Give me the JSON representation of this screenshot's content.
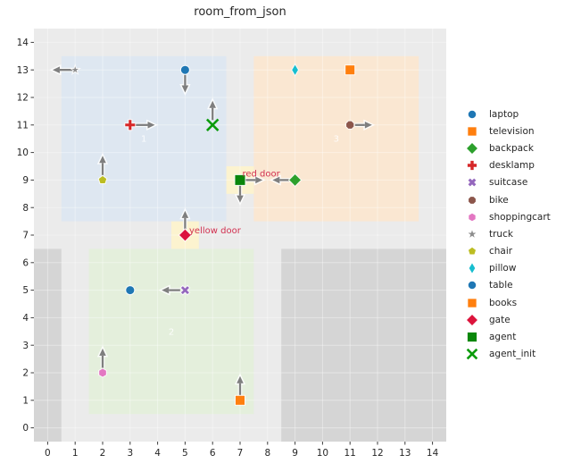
{
  "chart_data": {
    "type": "scatter",
    "title": "room_from_json",
    "xlabel": "",
    "ylabel": "",
    "xlim": [
      -0.5,
      14.5
    ],
    "ylim": [
      -0.5,
      14.5
    ],
    "xticks": [
      0,
      1,
      2,
      3,
      4,
      5,
      6,
      7,
      8,
      9,
      10,
      11,
      12,
      13,
      14
    ],
    "yticks": [
      0,
      1,
      2,
      3,
      4,
      5,
      6,
      7,
      8,
      9,
      10,
      11,
      12,
      13,
      14
    ],
    "grid": true,
    "legend_position": "right-outside",
    "plot_bg": "#ebebeb",
    "grid_color": "rgba(255,255,255,0.38)",
    "tick_color": "#3c3c3c",
    "tick_label_color": "#262626",
    "arrow_color": "#7f7f7f",
    "annotation_color": "#d23050",
    "region_label_color": "rgba(255,255,255,0.88)",
    "regions": [
      {
        "name": "room-1",
        "x0": 0.5,
        "x1": 6.5,
        "y0": 7.5,
        "y1": 13.5,
        "color": "#dee7f1"
      },
      {
        "name": "room-3",
        "x0": 7.5,
        "x1": 13.5,
        "y0": 7.5,
        "y1": 13.5,
        "color": "#fae7d2"
      },
      {
        "name": "room-2",
        "x0": 1.5,
        "x1": 7.5,
        "y0": 0.5,
        "y1": 6.5,
        "color": "#e4efdc"
      },
      {
        "name": "obstacle-left",
        "x0": -0.5,
        "x1": 0.5,
        "y0": -0.5,
        "y1": 6.5,
        "color": "#d5d5d5"
      },
      {
        "name": "obstacle-right",
        "x0": 8.5,
        "x1": 14.5,
        "y0": -0.5,
        "y1": 6.5,
        "color": "#d5d5d5"
      },
      {
        "name": "yellow-door-area",
        "x0": 4.5,
        "x1": 5.5,
        "y0": 6.5,
        "y1": 7.5,
        "color": "#fcf3cf"
      },
      {
        "name": "red-door-area",
        "x0": 6.5,
        "x1": 7.5,
        "y0": 8.5,
        "y1": 9.5,
        "color": "#fcf3cf"
      }
    ],
    "region_labels": [
      {
        "text": "1",
        "x": 3.5,
        "y": 10.5
      },
      {
        "text": "2",
        "x": 4.5,
        "y": 3.5
      },
      {
        "text": "3",
        "x": 10.5,
        "y": 10.5
      }
    ],
    "annotations": [
      {
        "text": "red door",
        "x": 7.08,
        "y": 9.13
      },
      {
        "text": "yellow door",
        "x": 5.15,
        "y": 7.06
      }
    ],
    "points": [
      {
        "name": "laptop",
        "marker": "circle",
        "color": "#1f77b4",
        "x": 5,
        "y": 13,
        "size": 10
      },
      {
        "name": "television",
        "marker": "square",
        "color": "#ff7f0e",
        "x": 11,
        "y": 13,
        "size": 11
      },
      {
        "name": "backpack",
        "marker": "diamond",
        "color": "#2ca02c",
        "x": 9,
        "y": 9,
        "size": 13
      },
      {
        "name": "desklamp",
        "marker": "plus",
        "color": "#d62728",
        "x": 3,
        "y": 11,
        "size": 12
      },
      {
        "name": "suitcase",
        "marker": "x-thick",
        "color": "#9467bd",
        "x": 5,
        "y": 5,
        "size": 11
      },
      {
        "name": "bike",
        "marker": "octagon",
        "color": "#8c564b",
        "x": 11,
        "y": 11,
        "size": 10
      },
      {
        "name": "shoppingcart",
        "marker": "hexagon",
        "color": "#e377c2",
        "x": 2,
        "y": 2,
        "size": 10
      },
      {
        "name": "truck",
        "marker": "star",
        "color": "#8c8c8c",
        "x": 1,
        "y": 13,
        "size": 11
      },
      {
        "name": "chair",
        "marker": "pentagon",
        "color": "#bcbd22",
        "x": 2,
        "y": 9,
        "size": 10
      },
      {
        "name": "pillow",
        "marker": "thin-diamond",
        "color": "#17becf",
        "x": 9,
        "y": 13,
        "size": 13
      },
      {
        "name": "table",
        "marker": "circle",
        "color": "#1f77b4",
        "x": 3,
        "y": 5,
        "size": 10
      },
      {
        "name": "books",
        "marker": "square",
        "color": "#ff7f0e",
        "x": 7,
        "y": 1,
        "size": 11
      },
      {
        "name": "gate",
        "marker": "diamond",
        "color": "#dc143c",
        "x": 5,
        "y": 7,
        "size": 13
      },
      {
        "name": "agent",
        "marker": "square",
        "color": "#0a870a",
        "x": 7,
        "y": 9,
        "size": 12
      },
      {
        "name": "agent_init",
        "marker": "x-line",
        "color": "#0b9b0b",
        "x": 6,
        "y": 11,
        "size": 15
      }
    ],
    "arrows": [
      {
        "owner": "truck",
        "from": [
          0.95,
          13
        ],
        "to": [
          0.18,
          13
        ]
      },
      {
        "owner": "laptop",
        "from": [
          5,
          12.82
        ],
        "to": [
          5,
          12.18
        ]
      },
      {
        "owner": "desklamp",
        "from": [
          3.18,
          11
        ],
        "to": [
          3.9,
          11
        ]
      },
      {
        "owner": "agent_init",
        "from": [
          6,
          11.18
        ],
        "to": [
          6,
          11.88
        ]
      },
      {
        "owner": "chair",
        "from": [
          2,
          9.18
        ],
        "to": [
          2,
          9.88
        ]
      },
      {
        "owner": "agent",
        "from": [
          7.18,
          9
        ],
        "to": [
          7.82,
          9
        ]
      },
      {
        "owner": "agent",
        "from": [
          7,
          8.82
        ],
        "to": [
          7,
          8.18
        ]
      },
      {
        "owner": "backpack",
        "from": [
          8.82,
          9
        ],
        "to": [
          8.18,
          9
        ]
      },
      {
        "owner": "bike",
        "from": [
          11.18,
          11
        ],
        "to": [
          11.8,
          11
        ]
      },
      {
        "owner": "suitcase",
        "from": [
          4.82,
          5
        ],
        "to": [
          4.15,
          5
        ]
      },
      {
        "owner": "shoppingcart",
        "from": [
          2,
          2.18
        ],
        "to": [
          2,
          2.88
        ]
      },
      {
        "owner": "books",
        "from": [
          7,
          1.18
        ],
        "to": [
          7,
          1.88
        ]
      },
      {
        "owner": "gate",
        "from": [
          5,
          7.18
        ],
        "to": [
          5,
          7.88
        ]
      }
    ]
  }
}
